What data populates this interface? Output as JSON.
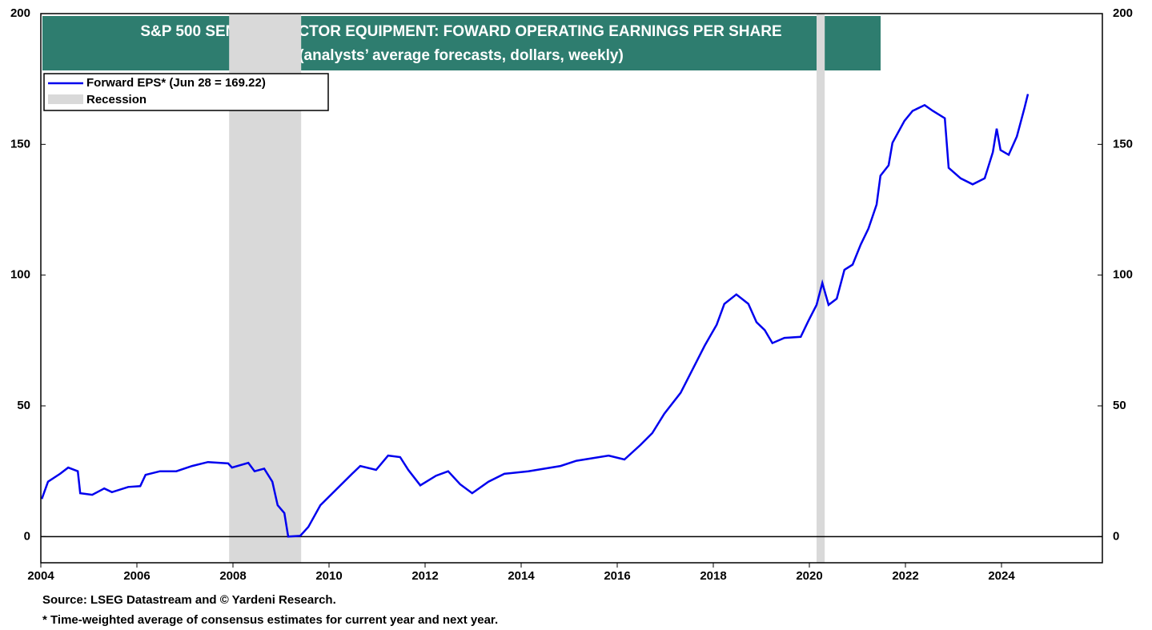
{
  "chart_data": {
    "type": "line",
    "title": "S&P 500 SEMICONDUCTOR EQUIPMENT: FOWARD OPERATING EARNINGS PER SHARE",
    "subtitle": "(analysts’ average forecasts, dollars, weekly)",
    "source": "Source: LSEG Datastream and © Yardeni Research.",
    "note": "* Time-weighted average of consensus estimates for current year and next year.",
    "xlim": [
      2004,
      2026.1
    ],
    "xticks": [
      2004,
      2006,
      2008,
      2010,
      2012,
      2014,
      2016,
      2018,
      2020,
      2022,
      2024
    ],
    "ylim": [
      -10,
      200
    ],
    "yticks": [
      0,
      50,
      100,
      150,
      200
    ],
    "y2lim": [
      -10,
      200
    ],
    "y2ticks": [
      0,
      50,
      100,
      150,
      200
    ],
    "legend": "top-left",
    "shaded_regions": {
      "name": "Recession",
      "color": "#d9d9d9",
      "ranges": [
        [
          2007.92,
          2009.42
        ],
        [
          2020.15,
          2020.32
        ]
      ]
    },
    "x": [
      2004.02,
      2004.15,
      2004.4,
      2004.57,
      2004.77,
      2004.82,
      2005.07,
      2005.32,
      2005.48,
      2005.82,
      2006.07,
      2006.18,
      2006.48,
      2006.82,
      2007.15,
      2007.48,
      2007.9,
      2007.98,
      2008.32,
      2008.45,
      2008.65,
      2008.82,
      2008.93,
      2009.07,
      2009.15,
      2009.4,
      2009.57,
      2009.82,
      2010.15,
      2010.48,
      2010.65,
      2010.98,
      2011.23,
      2011.48,
      2011.65,
      2011.9,
      2012.23,
      2012.48,
      2012.73,
      2012.98,
      2013.32,
      2013.65,
      2014.15,
      2014.82,
      2015.15,
      2015.82,
      2016.15,
      2016.48,
      2016.73,
      2016.98,
      2017.32,
      2017.57,
      2017.82,
      2018.07,
      2018.23,
      2018.48,
      2018.73,
      2018.9,
      2019.07,
      2019.23,
      2019.48,
      2019.82,
      2019.98,
      2020.15,
      2020.27,
      2020.4,
      2020.57,
      2020.73,
      2020.9,
      2021.07,
      2021.23,
      2021.4,
      2021.48,
      2021.65,
      2021.73,
      2021.98,
      2022.15,
      2022.4,
      2022.57,
      2022.82,
      2022.9,
      2023.15,
      2023.4,
      2023.65,
      2023.82,
      2023.9,
      2023.98,
      2024.15,
      2024.32,
      2024.48,
      2024.55
    ],
    "series": [
      {
        "name": "Forward EPS* (Jun 28 = 169.22)",
        "color": "#0000ee",
        "values": [
          14.4,
          21,
          24,
          26.4,
          25,
          16.6,
          16,
          18.4,
          17,
          19,
          19.3,
          23.6,
          25,
          25,
          27,
          28.5,
          28,
          26.4,
          28.2,
          25,
          26,
          21,
          12,
          9,
          0,
          0.3,
          3.7,
          12,
          18,
          24,
          27,
          25.5,
          31,
          30.4,
          25.5,
          19.6,
          23.3,
          25,
          20,
          16.6,
          21,
          24,
          25,
          27,
          29,
          31,
          29.5,
          35,
          39.6,
          47,
          55,
          64,
          73,
          81,
          89,
          92.6,
          89,
          82,
          79,
          74,
          76,
          76.4,
          82.5,
          88.6,
          97,
          88.6,
          91,
          102,
          104,
          111.7,
          117.8,
          127,
          138,
          142,
          150.6,
          159,
          162.8,
          165,
          162.8,
          160,
          141,
          137,
          134.7,
          137,
          147,
          156,
          147.8,
          146,
          153,
          164,
          169.22
        ]
      }
    ]
  }
}
